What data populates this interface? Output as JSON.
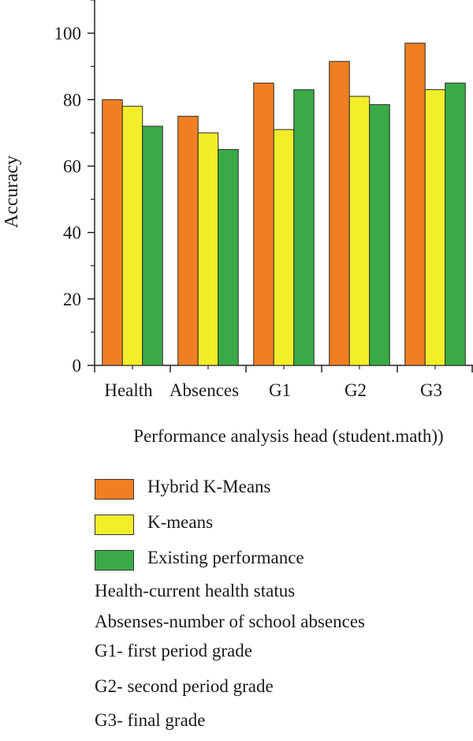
{
  "chart_data": {
    "type": "bar",
    "title": "",
    "xlabel": "Performance analysis head (student.math))",
    "ylabel": "Accuracy",
    "ylim": [
      0,
      110
    ],
    "yticks": [
      0,
      20,
      40,
      60,
      80,
      100
    ],
    "categories": [
      "Health",
      "Absences",
      "G1",
      "G2",
      "G3"
    ],
    "series": [
      {
        "name": "Hybrid K-Means",
        "color": "#f07f22",
        "values": [
          80,
          75,
          85,
          91.5,
          97
        ]
      },
      {
        "name": "K-means",
        "color": "#f2ee2a",
        "values": [
          78,
          70,
          71,
          81,
          83
        ]
      },
      {
        "name": "Existing performance",
        "color": "#3aaa48",
        "values": [
          72,
          65,
          83,
          78.5,
          85
        ]
      }
    ],
    "legend_position": "bottom",
    "grid": false
  },
  "notes": [
    "Health-current health status",
    "Absenses-number of school absences",
    "G1- first period grade",
    "G2- second period grade",
    "G3- final grade"
  ]
}
